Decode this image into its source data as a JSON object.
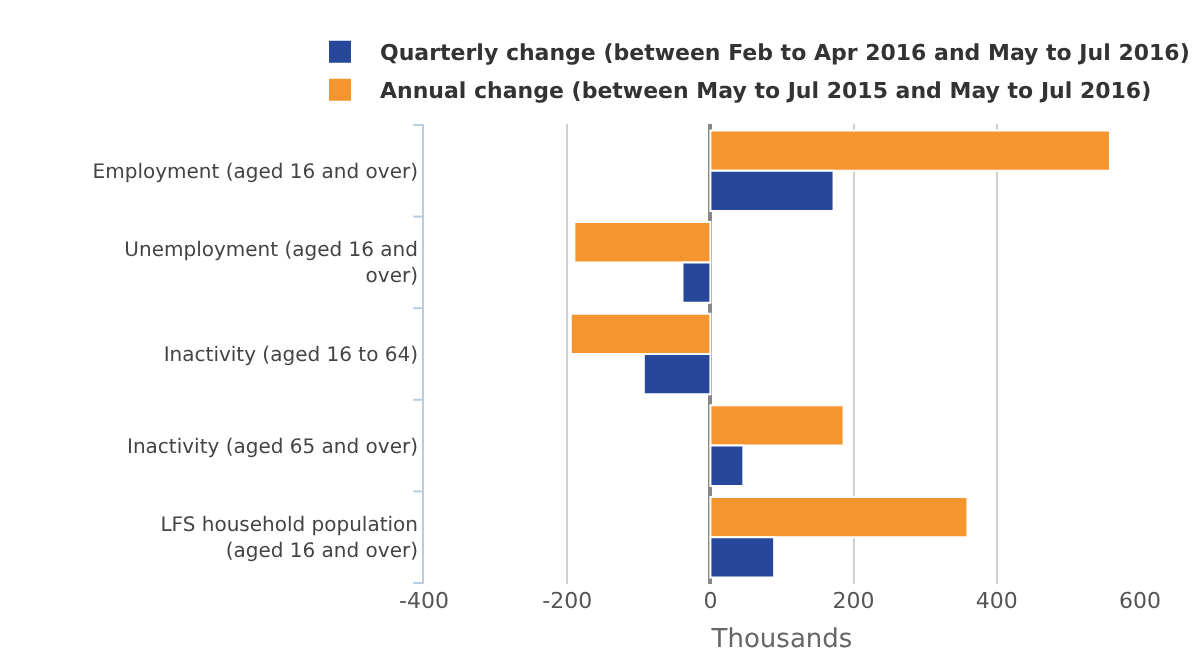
{
  "chart_data": {
    "type": "bar",
    "orientation": "horizontal",
    "xlabel": "Thousands",
    "categories": [
      "Employment (aged 16 and over)",
      "Unemployment (aged 16 and over)",
      "Inactivity (aged 16 to 64)",
      "Inactivity (aged 65 and over)",
      "LFS household population (aged 16 and over)"
    ],
    "series": [
      {
        "name": "Quarterly change (between Feb to Apr 2016 and May to Jul 2016)",
        "color": "#26479a",
        "values": [
          172,
          -39,
          -93,
          46,
          89
        ]
      },
      {
        "name": "Annual change (between May to Jul 2015 and May to Jul 2016)",
        "color": "#f4952f",
        "values": [
          558,
          -190,
          -195,
          186,
          359
        ]
      }
    ],
    "xlim": [
      -400,
      600
    ],
    "xticks": [
      -400,
      -200,
      0,
      200,
      400,
      600
    ],
    "grid": "x",
    "legend": "top"
  }
}
